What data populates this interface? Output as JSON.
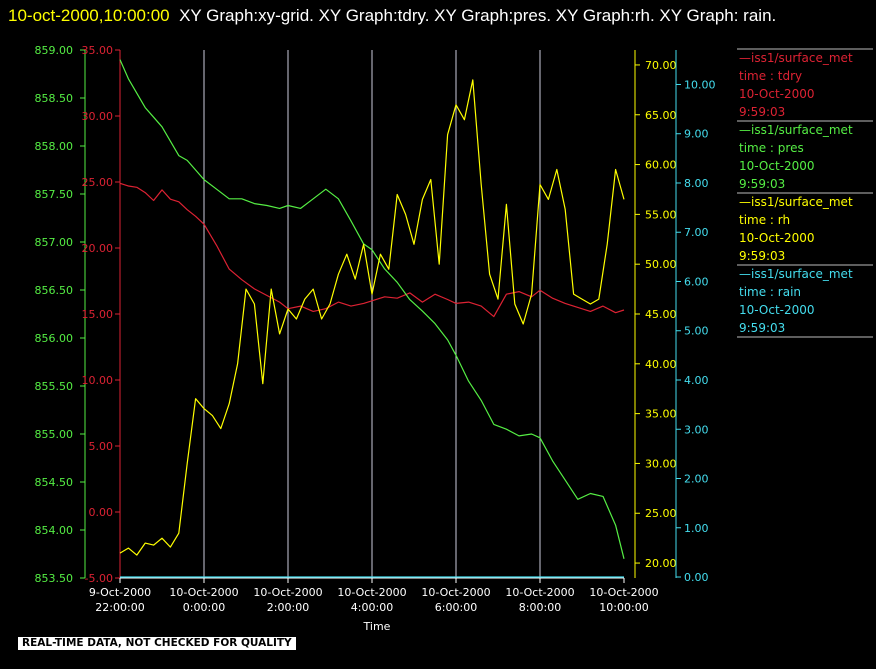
{
  "header": {
    "timestamp": "10-oct-2000,10:00:00",
    "title": "XY Graph:xy-grid.  XY Graph:tdry.  XY Graph:pres.  XY Graph:rh.  XY Graph: rain."
  },
  "footer": {
    "quality_note": "REAL-TIME DATA, NOT CHECKED FOR QUALITY"
  },
  "chart_data": {
    "type": "line",
    "xlabel": "Time",
    "x_ticks": [
      [
        "9-Oct-2000",
        "22:00:00"
      ],
      [
        "10-Oct-2000",
        "0:00:00"
      ],
      [
        "10-Oct-2000",
        "2:00:00"
      ],
      [
        "10-Oct-2000",
        "4:00:00"
      ],
      [
        "10-Oct-2000",
        "6:00:00"
      ],
      [
        "10-Oct-2000",
        "8:00:00"
      ],
      [
        "10-Oct-2000",
        "10:00:00"
      ]
    ],
    "x_hours": [
      -2,
      0,
      2,
      4,
      6,
      8,
      10
    ],
    "xlim": [
      -2,
      10
    ],
    "grid": "vertical",
    "axes": {
      "pres": {
        "ticks": [
          "853.50",
          "854.00",
          "854.50",
          "855.00",
          "855.50",
          "856.00",
          "856.50",
          "857.00",
          "857.50",
          "858.00",
          "858.50",
          "859.00"
        ],
        "ylim": [
          853.5,
          859.0
        ],
        "color": "#55ee44",
        "side": "left-outer"
      },
      "tdry": {
        "ticks": [
          "-5.00",
          "0.00",
          "5.00",
          "10.00",
          "15.00",
          "20.00",
          "25.00",
          "30.00",
          "35.00"
        ],
        "ylim": [
          -5,
          35
        ],
        "color": "#dd2233",
        "side": "left-inner"
      },
      "rh": {
        "ticks": [
          "20.00",
          "25.00",
          "30.00",
          "35.00",
          "40.00",
          "45.00",
          "50.00",
          "55.00",
          "60.00",
          "65.00",
          "70.00"
        ],
        "ylim": [
          18.5,
          71.5
        ],
        "color": "#ffff00",
        "side": "right-inner"
      },
      "rain": {
        "ticks": [
          "0.00",
          "1.00",
          "2.00",
          "3.00",
          "4.00",
          "5.00",
          "6.00",
          "7.00",
          "8.00",
          "9.00",
          "10.00"
        ],
        "ylim": [
          -0.02,
          10.7
        ],
        "color": "#44ddee",
        "side": "right-outer"
      }
    },
    "legend": [
      {
        "series": "tdry",
        "color": "#dd2233",
        "lines": [
          "—iss1/surface_met",
          "time : tdry",
          "10-Oct-2000",
          "9:59:03"
        ]
      },
      {
        "series": "pres",
        "color": "#55ee44",
        "lines": [
          "—iss1/surface_met",
          "time : pres",
          "10-Oct-2000",
          "9:59:03"
        ]
      },
      {
        "series": "rh",
        "color": "#ffff00",
        "lines": [
          "—iss1/surface_met",
          "time : rh",
          "10-Oct-2000",
          "9:59:03"
        ]
      },
      {
        "series": "rain",
        "color": "#44ddee",
        "lines": [
          "—iss1/surface_met",
          "time : rain",
          "10-Oct-2000",
          "9:59:03"
        ]
      }
    ],
    "series": [
      {
        "name": "tdry",
        "color": "#dd2233",
        "axis": "tdry",
        "x": [
          -2,
          -1.8,
          -1.6,
          -1.4,
          -1.2,
          -1.0,
          -0.8,
          -0.6,
          -0.4,
          -0.2,
          0,
          0.3,
          0.6,
          0.9,
          1.2,
          1.5,
          1.8,
          2.0,
          2.3,
          2.6,
          2.9,
          3.2,
          3.5,
          3.8,
          4.0,
          4.3,
          4.6,
          4.9,
          5.2,
          5.5,
          5.8,
          6.0,
          6.3,
          6.6,
          6.9,
          7.2,
          7.5,
          7.8,
          8.0,
          8.3,
          8.6,
          8.9,
          9.2,
          9.5,
          9.8,
          10.0
        ],
        "y": [
          24.9,
          24.7,
          24.6,
          24.2,
          23.6,
          24.4,
          23.7,
          23.5,
          22.9,
          22.4,
          21.8,
          20.2,
          18.4,
          17.6,
          16.9,
          16.4,
          15.9,
          15.4,
          15.6,
          15.2,
          15.4,
          15.9,
          15.6,
          15.8,
          16.0,
          16.3,
          16.2,
          16.6,
          15.9,
          16.5,
          16.1,
          15.8,
          15.9,
          15.6,
          14.8,
          16.5,
          16.7,
          16.3,
          16.8,
          16.2,
          15.8,
          15.5,
          15.2,
          15.6,
          15.1,
          15.3
        ]
      },
      {
        "name": "pres",
        "color": "#55ee44",
        "axis": "pres",
        "x": [
          -2,
          -1.8,
          -1.6,
          -1.4,
          -1.2,
          -1.0,
          -0.8,
          -0.6,
          -0.4,
          -0.2,
          0,
          0.3,
          0.6,
          0.9,
          1.2,
          1.5,
          1.8,
          2.0,
          2.3,
          2.6,
          2.9,
          3.2,
          3.5,
          3.8,
          4.0,
          4.3,
          4.6,
          4.9,
          5.2,
          5.5,
          5.8,
          6.0,
          6.3,
          6.6,
          6.9,
          7.2,
          7.5,
          7.8,
          8.0,
          8.3,
          8.6,
          8.9,
          9.2,
          9.5,
          9.8,
          10.0
        ],
        "y": [
          858.9,
          858.7,
          858.55,
          858.4,
          858.3,
          858.2,
          858.05,
          857.9,
          857.85,
          857.75,
          857.65,
          857.55,
          857.45,
          857.45,
          857.4,
          857.38,
          857.35,
          857.38,
          857.35,
          857.45,
          857.55,
          857.45,
          857.22,
          856.98,
          856.92,
          856.72,
          856.58,
          856.4,
          856.28,
          856.15,
          855.98,
          855.82,
          855.55,
          855.35,
          855.1,
          855.05,
          854.98,
          855.0,
          854.96,
          854.72,
          854.52,
          854.32,
          854.38,
          854.35,
          854.05,
          853.7
        ]
      },
      {
        "name": "rh",
        "color": "#ffff00",
        "axis": "rh",
        "x": [
          -2,
          -1.8,
          -1.6,
          -1.4,
          -1.2,
          -1.0,
          -0.8,
          -0.6,
          -0.4,
          -0.2,
          0,
          0.2,
          0.4,
          0.6,
          0.8,
          1.0,
          1.2,
          1.4,
          1.6,
          1.8,
          2.0,
          2.2,
          2.4,
          2.6,
          2.8,
          3.0,
          3.2,
          3.4,
          3.6,
          3.8,
          4.0,
          4.2,
          4.4,
          4.6,
          4.8,
          5.0,
          5.2,
          5.4,
          5.6,
          5.8,
          6.0,
          6.2,
          6.4,
          6.6,
          6.8,
          7.0,
          7.2,
          7.4,
          7.6,
          7.8,
          8.0,
          8.2,
          8.4,
          8.6,
          8.8,
          9.0,
          9.2,
          9.4,
          9.6,
          9.8,
          10.0
        ],
        "y": [
          21.0,
          21.5,
          20.8,
          22.0,
          21.8,
          22.5,
          21.6,
          23.0,
          30.0,
          36.5,
          35.5,
          34.8,
          33.5,
          36.0,
          40.0,
          47.5,
          46.0,
          38.0,
          47.5,
          43.0,
          45.5,
          44.5,
          46.5,
          47.5,
          44.5,
          46.0,
          49.0,
          51.0,
          48.5,
          52.0,
          47.0,
          51.0,
          49.5,
          57.0,
          55.0,
          52.0,
          56.5,
          58.5,
          50.0,
          63.0,
          66.0,
          64.5,
          68.5,
          58.0,
          49.0,
          46.5,
          56.0,
          46.0,
          44.0,
          47.0,
          58.0,
          56.5,
          59.5,
          55.5,
          47.0,
          46.5,
          46.0,
          46.5,
          52.0,
          59.5,
          56.5
        ]
      },
      {
        "name": "rain",
        "color": "#44ddee",
        "axis": "rain",
        "x": [
          -2,
          10
        ],
        "y": [
          0.0,
          0.0
        ]
      }
    ]
  }
}
